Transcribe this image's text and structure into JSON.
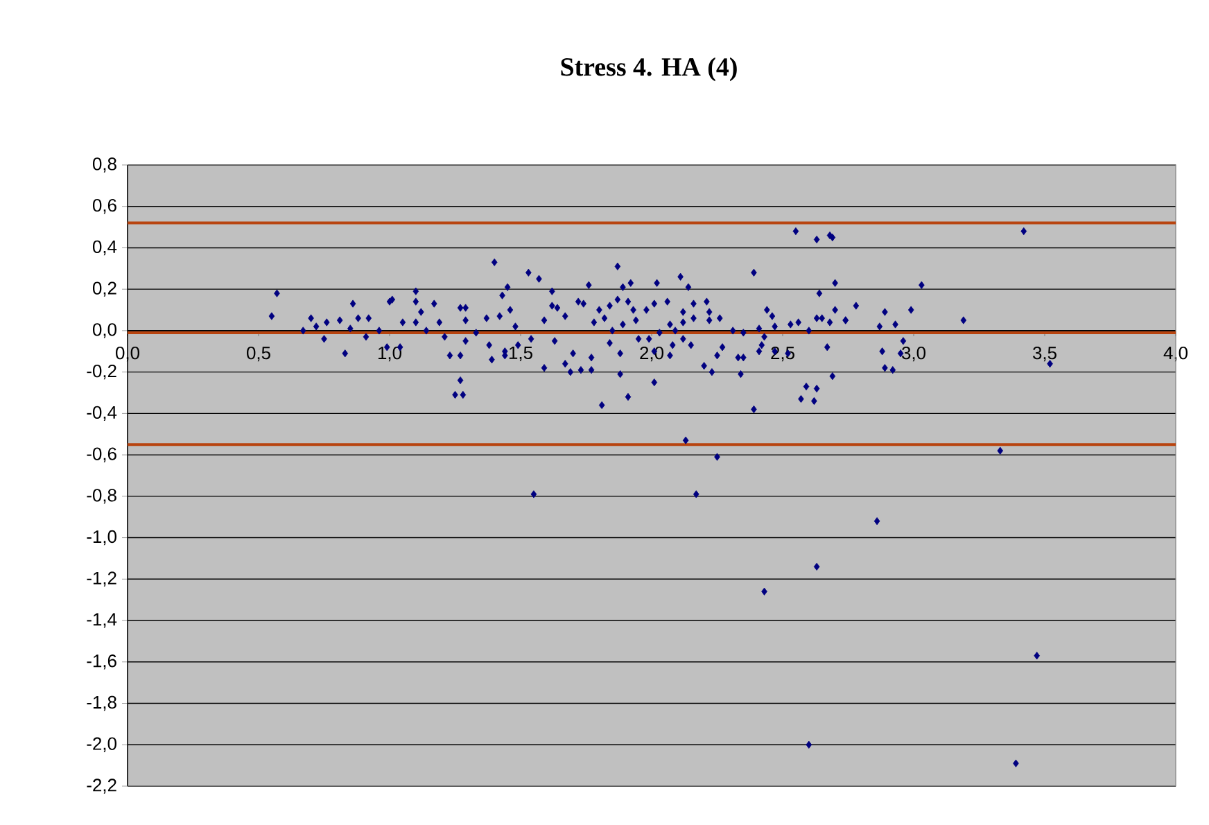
{
  "chart_data": {
    "type": "scatter",
    "title": "Stress 4. HA (4)",
    "xlim": [
      0.0,
      4.0
    ],
    "xticks": [
      {
        "value": 0.0,
        "label": "0,0"
      },
      {
        "value": 0.5,
        "label": "0,5"
      },
      {
        "value": 1.0,
        "label": "1,0"
      },
      {
        "value": 1.5,
        "label": "1,5"
      },
      {
        "value": 2.0,
        "label": "2,0"
      },
      {
        "value": 2.5,
        "label": "2,5"
      },
      {
        "value": 3.0,
        "label": "3,0"
      },
      {
        "value": 3.5,
        "label": "3,5"
      },
      {
        "value": 4.0,
        "label": "4,0"
      }
    ],
    "ylim": [
      -2.2,
      0.8
    ],
    "yticks": [
      {
        "value": 0.8,
        "label": "0,8"
      },
      {
        "value": 0.6,
        "label": "0,6"
      },
      {
        "value": 0.4,
        "label": "0,4"
      },
      {
        "value": 0.2,
        "label": "0,2"
      },
      {
        "value": 0.0,
        "label": "0,0"
      },
      {
        "value": -0.2,
        "label": "-0,2"
      },
      {
        "value": -0.4,
        "label": "-0,4"
      },
      {
        "value": -0.6,
        "label": "-0,6"
      },
      {
        "value": -0.8,
        "label": "-0,8"
      },
      {
        "value": -1.0,
        "label": "-1,0"
      },
      {
        "value": -1.2,
        "label": "-1,2"
      },
      {
        "value": -1.4,
        "label": "-1,4"
      },
      {
        "value": -1.6,
        "label": "-1,6"
      },
      {
        "value": -1.8,
        "label": "-1,8"
      },
      {
        "value": -2.0,
        "label": "-2,0"
      },
      {
        "value": -2.2,
        "label": "-2,2"
      }
    ],
    "grid": "y",
    "marker": "diamond",
    "ref_lines": [
      {
        "axis": "y",
        "value": 0.52,
        "color": "#b8440f"
      },
      {
        "axis": "y",
        "value": -0.01,
        "color": "#b8440f"
      },
      {
        "axis": "y",
        "value": -0.55,
        "color": "#b8440f"
      }
    ],
    "series": [
      {
        "color": "#000080",
        "x": [
          0.57,
          0.55,
          0.67,
          0.7,
          0.72,
          0.75,
          0.76,
          0.81,
          0.83,
          0.86,
          0.85,
          0.88,
          0.92,
          0.91,
          0.96,
          0.99,
          1.0,
          1.01,
          1.04,
          1.05,
          1.1,
          1.1,
          1.12,
          1.1,
          1.14,
          1.17,
          1.19,
          1.21,
          1.23,
          1.27,
          1.27,
          1.29,
          1.29,
          1.29,
          1.27,
          1.25,
          1.33,
          1.4,
          1.53,
          1.57,
          1.62,
          1.45,
          1.43,
          1.37,
          1.42,
          1.46,
          1.48,
          1.38,
          1.44,
          1.44,
          1.39,
          1.49,
          1.54,
          1.59,
          1.62,
          1.64,
          1.59,
          1.63,
          1.67,
          1.72,
          1.74,
          1.7,
          1.67,
          1.73,
          1.69,
          1.77,
          1.77,
          1.76,
          1.8,
          1.78,
          1.82,
          1.84,
          1.87,
          1.89,
          1.92,
          1.87,
          1.91,
          1.93,
          1.94,
          1.89,
          1.85,
          1.84,
          1.88,
          1.95,
          1.98,
          2.02,
          2.01,
          2.03,
          1.99,
          2.01,
          2.01,
          1.88,
          2.06,
          2.07,
          2.09,
          2.11,
          2.14,
          2.12,
          2.16,
          2.16,
          2.12,
          2.12,
          2.08,
          2.07,
          2.15,
          2.21,
          2.22,
          2.22,
          2.26,
          2.2,
          2.23,
          2.25,
          2.27,
          2.31,
          2.35,
          2.39,
          2.41,
          2.43,
          2.44,
          2.46,
          2.47,
          2.42,
          2.41,
          2.47,
          2.33,
          2.35,
          2.34,
          2.52,
          2.53,
          2.56,
          2.6,
          2.59,
          2.57,
          2.55,
          2.63,
          2.68,
          2.64,
          2.63,
          3.42,
          3.03,
          3.19,
          2.99,
          2.89,
          2.93,
          2.87,
          2.78,
          2.7,
          2.69,
          2.7,
          2.74,
          2.74,
          2.68,
          2.65,
          2.96,
          2.95,
          2.88,
          2.89,
          2.92,
          2.67,
          2.69,
          3.52,
          1.28,
          1.55,
          1.81,
          1.91,
          2.13,
          2.17,
          2.25,
          2.39,
          2.62,
          2.63,
          2.43,
          2.63,
          2.86,
          3.33,
          3.47,
          2.6,
          3.39
        ],
        "values": [
          0.18,
          0.07,
          0.0,
          0.06,
          0.02,
          -0.04,
          0.04,
          0.05,
          -0.11,
          0.13,
          0.01,
          0.06,
          0.06,
          -0.03,
          0.0,
          -0.08,
          0.14,
          0.15,
          -0.08,
          0.04,
          0.19,
          0.14,
          0.09,
          0.04,
          0.0,
          0.13,
          0.04,
          -0.03,
          -0.12,
          -0.12,
          0.11,
          0.11,
          0.05,
          -0.05,
          -0.24,
          -0.31,
          -0.01,
          0.33,
          0.28,
          0.25,
          0.19,
          0.21,
          0.17,
          0.06,
          0.07,
          0.1,
          0.02,
          -0.07,
          -0.1,
          -0.12,
          -0.14,
          -0.07,
          -0.04,
          0.05,
          0.12,
          0.11,
          -0.18,
          -0.05,
          0.07,
          0.14,
          0.13,
          -0.11,
          -0.16,
          -0.19,
          -0.2,
          -0.13,
          -0.19,
          0.22,
          0.1,
          0.04,
          0.06,
          0.12,
          0.31,
          0.21,
          0.23,
          0.15,
          0.14,
          0.1,
          0.05,
          0.03,
          0.0,
          -0.06,
          -0.11,
          -0.04,
          0.1,
          0.23,
          0.13,
          -0.01,
          -0.04,
          -0.1,
          -0.25,
          -0.21,
          0.14,
          0.03,
          0.0,
          0.26,
          0.21,
          0.09,
          0.13,
          0.06,
          0.04,
          -0.04,
          -0.07,
          -0.12,
          -0.07,
          0.14,
          0.09,
          0.05,
          0.06,
          -0.17,
          -0.2,
          -0.12,
          -0.08,
          0.0,
          -0.01,
          0.28,
          0.01,
          -0.03,
          0.1,
          0.07,
          0.02,
          -0.07,
          -0.1,
          -0.1,
          -0.13,
          -0.13,
          -0.21,
          -0.11,
          0.03,
          0.04,
          0.0,
          -0.27,
          -0.33,
          0.48,
          0.44,
          0.46,
          0.18,
          0.06,
          0.48,
          0.22,
          0.05,
          0.1,
          0.09,
          0.03,
          0.02,
          0.12,
          0.23,
          0.45,
          0.1,
          0.05,
          0.05,
          0.04,
          0.06,
          -0.05,
          -0.11,
          -0.1,
          -0.18,
          -0.19,
          -0.08,
          -0.22,
          -0.16,
          -0.31,
          -0.79,
          -0.36,
          -0.32,
          -0.53,
          -0.79,
          -0.61,
          -0.38,
          -0.34,
          -0.28,
          -1.26,
          -1.14,
          -0.92,
          -0.58,
          -1.57,
          -2.0,
          -2.09
        ]
      }
    ]
  }
}
